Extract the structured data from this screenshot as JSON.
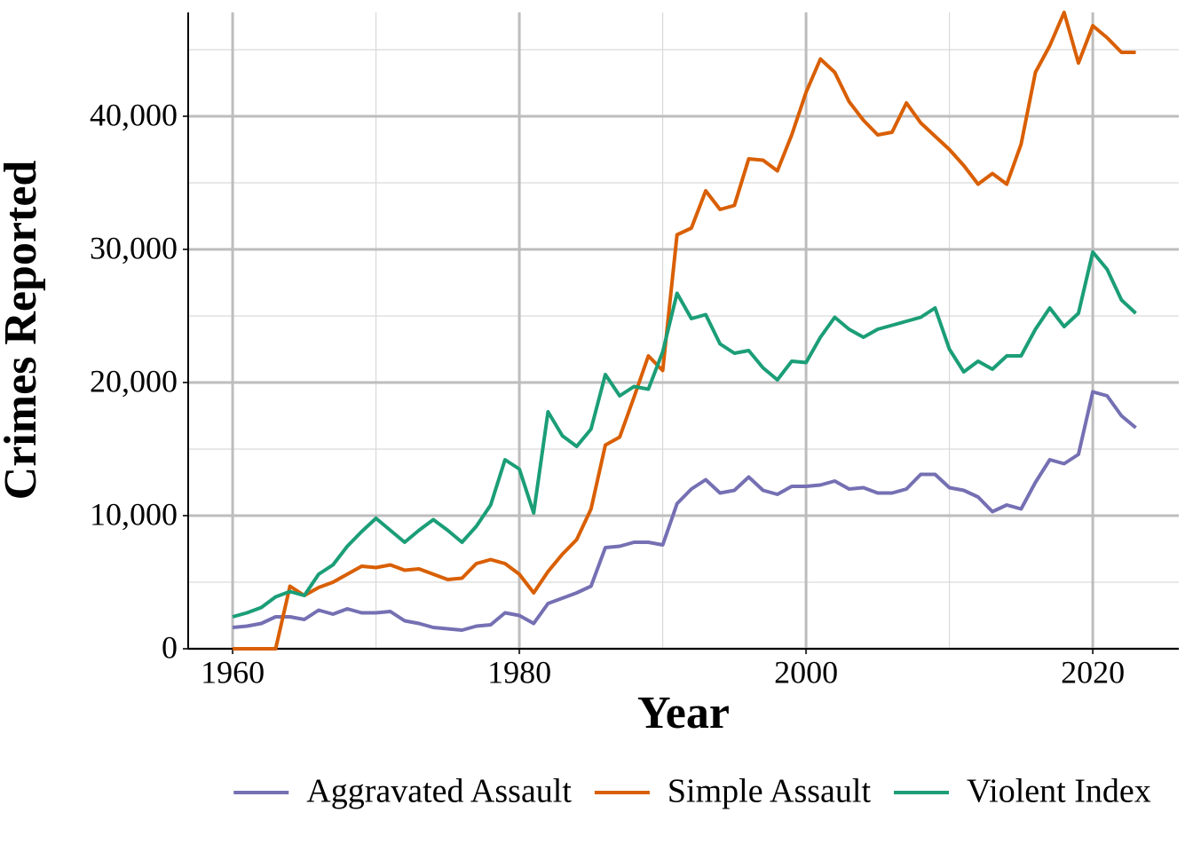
{
  "chart_data": {
    "type": "line",
    "x_label": "Year",
    "y_label": "Crimes Reported",
    "x": [
      1960,
      1961,
      1962,
      1963,
      1964,
      1965,
      1966,
      1967,
      1968,
      1969,
      1970,
      1971,
      1972,
      1973,
      1974,
      1975,
      1976,
      1977,
      1978,
      1979,
      1980,
      1981,
      1982,
      1983,
      1984,
      1985,
      1986,
      1987,
      1988,
      1989,
      1990,
      1991,
      1992,
      1993,
      1994,
      1995,
      1996,
      1997,
      1998,
      1999,
      2000,
      2001,
      2002,
      2003,
      2004,
      2005,
      2006,
      2007,
      2008,
      2009,
      2010,
      2011,
      2012,
      2013,
      2014,
      2015,
      2016,
      2017,
      2018,
      2019,
      2020,
      2021,
      2022,
      2023
    ],
    "series": [
      {
        "name": "Aggravated Assault",
        "color": "#7570b3",
        "values": [
          1600,
          1700,
          1900,
          2400,
          2400,
          2200,
          2900,
          2600,
          3000,
          2700,
          2700,
          2800,
          2100,
          1900,
          1600,
          1500,
          1400,
          1700,
          1800,
          2700,
          2500,
          1900,
          3400,
          3800,
          4200,
          4700,
          7600,
          7700,
          8000,
          8000,
          7800,
          10900,
          12000,
          12700,
          11700,
          11900,
          12900,
          11900,
          11600,
          12200,
          12200,
          12300,
          12600,
          12000,
          12100,
          11700,
          11700,
          12000,
          13100,
          13100,
          12100,
          11900,
          11400,
          10300,
          10800,
          10500,
          12500,
          14200,
          13900,
          14600,
          19300,
          19000,
          17500,
          16600
        ]
      },
      {
        "name": "Simple Assault",
        "color": "#d95f02",
        "values": [
          0,
          0,
          0,
          0,
          4700,
          4000,
          4600,
          5000,
          5600,
          6200,
          6100,
          6300,
          5900,
          6000,
          5600,
          5200,
          5300,
          6400,
          6700,
          6400,
          5600,
          4200,
          5800,
          7100,
          8200,
          10500,
          15300,
          15900,
          18900,
          22000,
          20900,
          31100,
          31600,
          34400,
          33000,
          33300,
          36800,
          36700,
          35900,
          38600,
          41800,
          44300,
          43300,
          41100,
          39700,
          38600,
          38800,
          41000,
          39500,
          38500,
          37500,
          36300,
          34900,
          35700,
          34900,
          37900,
          43300,
          45300,
          47800,
          44000,
          46800,
          45900,
          44800,
          44800
        ]
      },
      {
        "name": "Violent Index",
        "color": "#1b9e77",
        "values": [
          2400,
          2700,
          3100,
          3900,
          4300,
          4000,
          5600,
          6300,
          7700,
          8800,
          9800,
          8900,
          8000,
          8900,
          9700,
          8900,
          8000,
          9200,
          10800,
          14200,
          13500,
          10200,
          17800,
          16000,
          15200,
          16500,
          20600,
          19000,
          19700,
          19500,
          22300,
          26700,
          24800,
          25100,
          22900,
          22200,
          22400,
          21100,
          20200,
          21600,
          21500,
          23400,
          24900,
          24000,
          23400,
          24000,
          24300,
          24600,
          24900,
          25600,
          22500,
          20800,
          21600,
          21000,
          22000,
          22000,
          24000,
          25600,
          24200,
          25200,
          29800,
          28500,
          26200,
          25200
        ]
      }
    ],
    "xlim": [
      1956.9,
      2026
    ],
    "xticks": [
      1960,
      1980,
      2000,
      2020
    ],
    "xminor": [
      1970,
      1990,
      2010
    ],
    "ylim": [
      0,
      47800
    ],
    "yticks": [
      0,
      {
        "value": 10000,
        "label": "10,000"
      },
      {
        "value": 20000,
        "label": "20,000"
      },
      {
        "value": 30000,
        "label": "30,000"
      },
      {
        "value": 40000,
        "label": "40,000"
      }
    ],
    "yminor": [
      5000,
      15000,
      25000,
      35000,
      45000
    ],
    "grid": true,
    "legend": "bottom"
  }
}
